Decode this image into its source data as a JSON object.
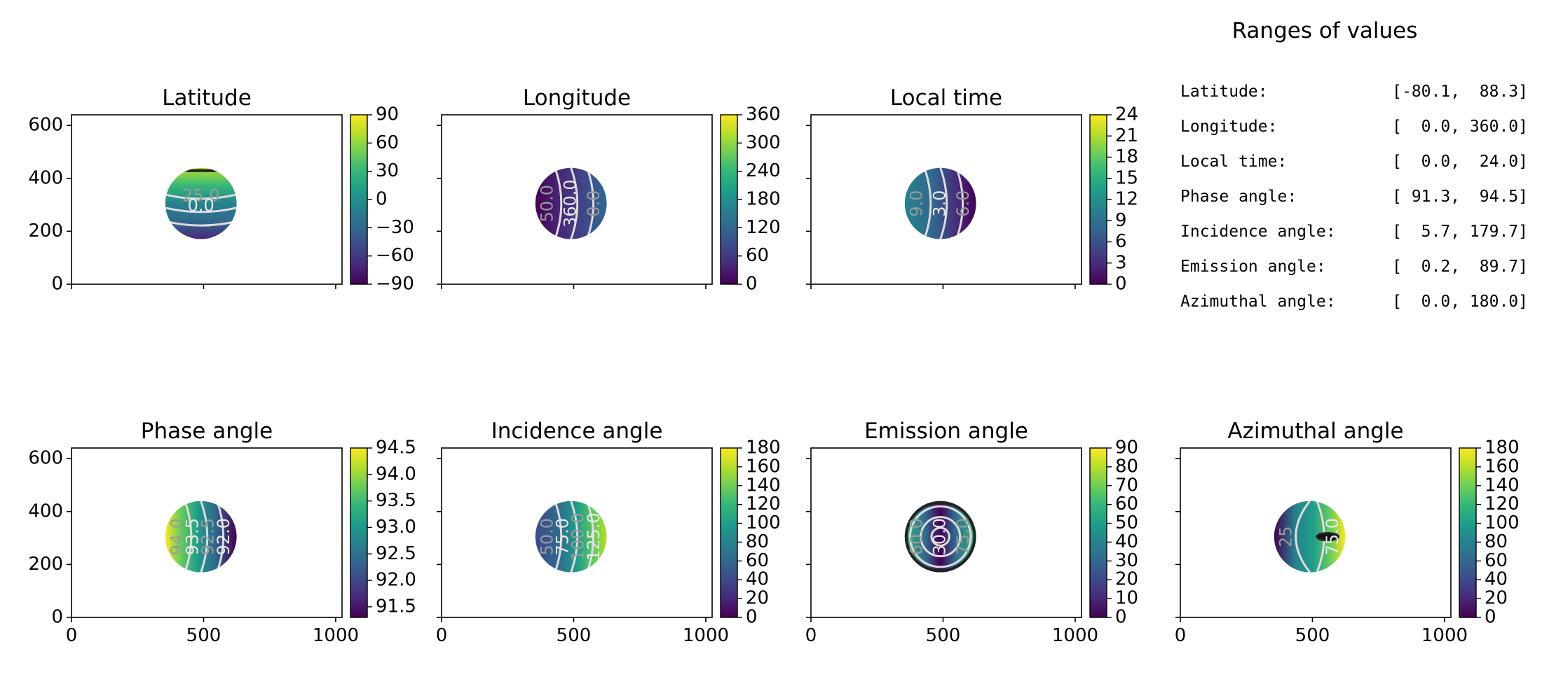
{
  "colors": {
    "viridis": [
      "#440154",
      "#482878",
      "#3e4989",
      "#31688e",
      "#26828e",
      "#1f9e89",
      "#35b779",
      "#6ece58",
      "#b5de2b",
      "#fde725"
    ],
    "axes": "#000000",
    "contour_light": "#dcdcdc",
    "contour_dark": "#222222"
  },
  "chart_data": [
    {
      "type": "heatmap",
      "title": "Latitude",
      "xlim": [
        0,
        1024
      ],
      "ylim": [
        0,
        640
      ],
      "xticks": [
        0,
        500,
        1000
      ],
      "yticks": [
        0,
        200,
        400,
        600
      ],
      "show_xtick_labels": false,
      "show_ytick_labels": true,
      "disk": {
        "center": [
          490,
          305
        ],
        "radius": 135
      },
      "gradient": "lat",
      "colorbar": {
        "min": -90,
        "max": 90,
        "ticks": [
          "90",
          "60",
          "30",
          "0",
          "−30",
          "−60",
          "−90"
        ]
      },
      "contour_labels": [
        "25.0",
        "0.0"
      ]
    },
    {
      "type": "heatmap",
      "title": "Longitude",
      "xlim": [
        0,
        1024
      ],
      "ylim": [
        0,
        640
      ],
      "xticks": [
        0,
        500,
        1000
      ],
      "yticks": [
        0,
        200,
        400,
        600
      ],
      "show_xtick_labels": false,
      "show_ytick_labels": false,
      "disk": {
        "center": [
          490,
          305
        ],
        "radius": 135
      },
      "gradient": "lon",
      "colorbar": {
        "min": 0,
        "max": 360,
        "ticks": [
          "360",
          "300",
          "240",
          "180",
          "120",
          "60",
          "0"
        ]
      },
      "contour_labels": [
        "50.0",
        "360.0",
        "0.0"
      ]
    },
    {
      "type": "heatmap",
      "title": "Local time",
      "xlim": [
        0,
        1024
      ],
      "ylim": [
        0,
        640
      ],
      "xticks": [
        0,
        500,
        1000
      ],
      "yticks": [
        0,
        200,
        400,
        600
      ],
      "show_xtick_labels": false,
      "show_ytick_labels": false,
      "disk": {
        "center": [
          490,
          305
        ],
        "radius": 135
      },
      "gradient": "lt",
      "colorbar": {
        "min": 0,
        "max": 24,
        "ticks": [
          "24",
          "21",
          "18",
          "15",
          "12",
          "9",
          "6",
          "3",
          "0"
        ]
      },
      "contour_labels": [
        "9.0",
        "3.0",
        "6.0"
      ]
    },
    {
      "type": "heatmap",
      "title": "Phase angle",
      "xlim": [
        0,
        1024
      ],
      "ylim": [
        0,
        640
      ],
      "xticks": [
        0,
        500,
        1000
      ],
      "yticks": [
        0,
        200,
        400,
        600
      ],
      "show_xtick_labels": true,
      "show_ytick_labels": true,
      "disk": {
        "center": [
          490,
          305
        ],
        "radius": 135
      },
      "gradient": "phase",
      "colorbar": {
        "min": 91.3,
        "max": 94.5,
        "ticks": [
          "94.5",
          "94.0",
          "93.5",
          "93.0",
          "92.5",
          "92.0",
          "91.5"
        ],
        "tick_values": [
          94.5,
          94.0,
          93.5,
          93.0,
          92.5,
          92.0,
          91.5
        ]
      },
      "contour_labels": [
        "94.0",
        "93.5",
        "92.5",
        "92.0"
      ]
    },
    {
      "type": "heatmap",
      "title": "Incidence angle",
      "xlim": [
        0,
        1024
      ],
      "ylim": [
        0,
        640
      ],
      "xticks": [
        0,
        500,
        1000
      ],
      "yticks": [
        0,
        200,
        400,
        600
      ],
      "show_xtick_labels": true,
      "show_ytick_labels": false,
      "disk": {
        "center": [
          490,
          305
        ],
        "radius": 135
      },
      "gradient": "inc",
      "colorbar": {
        "min": 0,
        "max": 180,
        "ticks": [
          "180",
          "160",
          "140",
          "120",
          "100",
          "80",
          "60",
          "40",
          "20",
          "0"
        ]
      },
      "contour_labels": [
        "50.0",
        "75.0",
        "100.0",
        "125.0"
      ]
    },
    {
      "type": "heatmap",
      "title": "Emission angle",
      "xlim": [
        0,
        1024
      ],
      "ylim": [
        0,
        640
      ],
      "xticks": [
        0,
        500,
        1000
      ],
      "yticks": [
        0,
        200,
        400,
        600
      ],
      "show_xtick_labels": true,
      "show_ytick_labels": false,
      "disk": {
        "center": [
          490,
          305
        ],
        "radius": 135
      },
      "gradient": "emi",
      "colorbar": {
        "min": 0,
        "max": 90,
        "ticks": [
          "90",
          "80",
          "70",
          "60",
          "50",
          "40",
          "30",
          "20",
          "10",
          "0"
        ]
      },
      "contour_labels": [
        "60.0",
        "30.0",
        "75.0"
      ]
    },
    {
      "type": "heatmap",
      "title": "Azimuthal angle",
      "xlim": [
        0,
        1024
      ],
      "ylim": [
        0,
        640
      ],
      "xticks": [
        0,
        500,
        1000
      ],
      "yticks": [
        0,
        200,
        400,
        600
      ],
      "show_xtick_labels": true,
      "show_ytick_labels": false,
      "disk": {
        "center": [
          490,
          305
        ],
        "radius": 135
      },
      "gradient": "azi",
      "colorbar": {
        "min": 0,
        "max": 180,
        "ticks": [
          "180",
          "160",
          "140",
          "120",
          "100",
          "80",
          "60",
          "40",
          "20",
          "0"
        ]
      },
      "contour_labels": [
        "25",
        "75.0"
      ]
    }
  ],
  "ranges": {
    "title": "Ranges of values",
    "rows": [
      {
        "label": "Latitude:",
        "value": "[-80.1,  88.3]"
      },
      {
        "label": "Longitude:",
        "value": "[  0.0, 360.0]"
      },
      {
        "label": "Local time:",
        "value": "[  0.0,  24.0]"
      },
      {
        "label": "Phase angle:",
        "value": "[ 91.3,  94.5]"
      },
      {
        "label": "Incidence angle:",
        "value": "[  5.7, 179.7]"
      },
      {
        "label": "Emission angle:",
        "value": "[  0.2,  89.7]"
      },
      {
        "label": "Azimuthal angle:",
        "value": "[  0.0, 180.0]"
      }
    ]
  }
}
